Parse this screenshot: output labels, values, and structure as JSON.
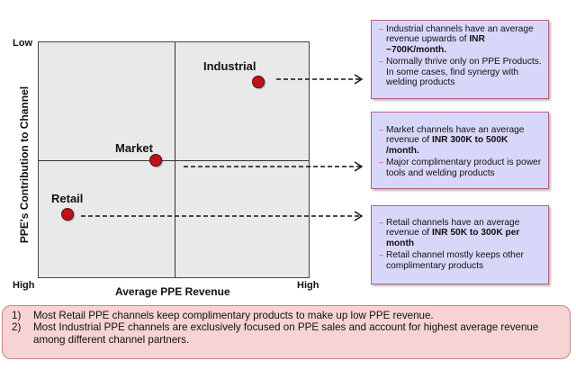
{
  "axis": {
    "y_top": "Low",
    "y_bottom": "High",
    "x_right": "High",
    "y_title": "PPE's Contribution to Channel",
    "x_title": "Average PPE Revenue"
  },
  "points": [
    {
      "name": "Industrial"
    },
    {
      "name": "Market"
    },
    {
      "name": "Retail"
    }
  ],
  "callouts": {
    "industrial": {
      "line1_pre": "Industrial channels have an average revenue  upwards of ",
      "line1_bold": "INR ~700K/month.",
      "line2": "Normally thrive only on PPE Products. In some cases, find synergy with welding products"
    },
    "market": {
      "line1_pre": "Market channels have an average revenue of ",
      "line1_bold": "INR 300K to 500K /month.",
      "line2": "Major complimentary product is power tools and welding products"
    },
    "retail": {
      "line1_pre": "Retail channels have an average revenue of ",
      "line1_bold": "INR 50K to 300K per month",
      "line2": "Retail channel mostly keeps other complimentary products"
    }
  },
  "notes": [
    {
      "num": "1)",
      "text": "Most Retail PPE channels keep complimentary products to make up low PPE revenue."
    },
    {
      "num": "2)",
      "text": "Most Industrial PPE channels are exclusively focused on PPE sales and account for highest average revenue among different channel partners."
    }
  ],
  "colors": {
    "dot": "#c0121a",
    "callout_bg": "#d9d7f9",
    "notes_bg": "#f7d3d3"
  }
}
